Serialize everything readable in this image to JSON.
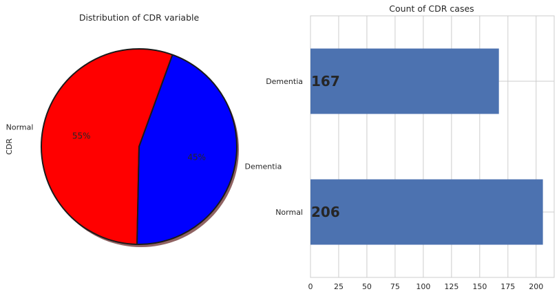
{
  "chart_data": [
    {
      "type": "pie",
      "title": "Distribution of CDR variable",
      "ylabel": "CDR",
      "categories": [
        "Normal",
        "Dementia"
      ],
      "values": [
        206,
        167
      ],
      "percent_labels": [
        "55%",
        "45%"
      ],
      "colors": [
        "#ff0000",
        "#0000ff"
      ],
      "shadow": true,
      "start_angle_deg": 70
    },
    {
      "type": "bar",
      "orientation": "horizontal",
      "title": "Count of CDR cases",
      "categories": [
        "Normal",
        "Dementia"
      ],
      "values": [
        206,
        167
      ],
      "value_labels": [
        "206",
        "167"
      ],
      "xlim": [
        0,
        216
      ],
      "xticks": [
        0,
        25,
        50,
        75,
        100,
        125,
        150,
        175,
        200
      ],
      "grid": true,
      "bar_color": "#4c72b0"
    }
  ]
}
